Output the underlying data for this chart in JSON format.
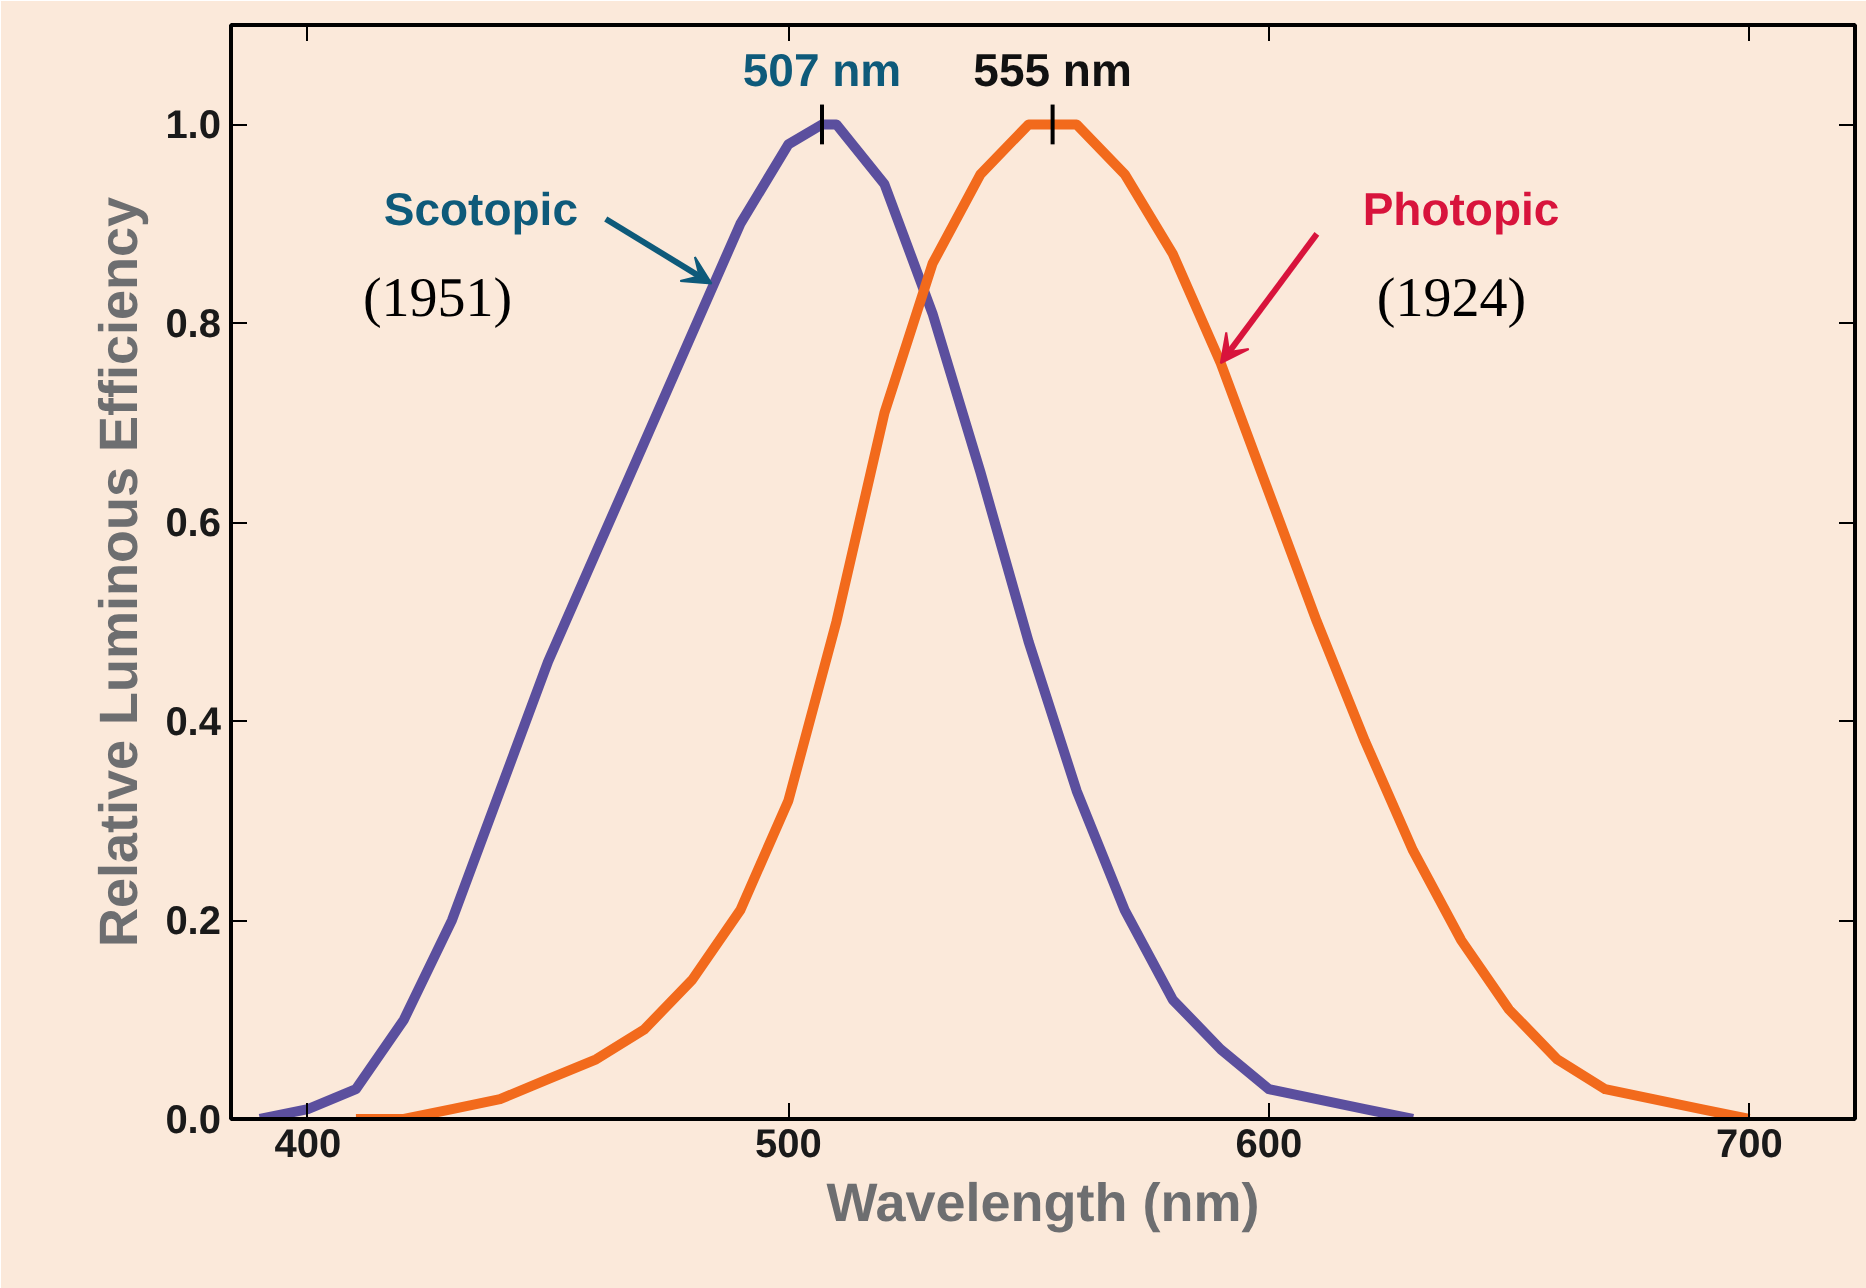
{
  "chart_data": {
    "type": "line",
    "xlabel": "Wavelength (nm)",
    "ylabel": "Relative Luminous Efficiency",
    "xlim": [
      384,
      722
    ],
    "xticks": [
      400,
      500,
      600,
      700
    ],
    "ylim": [
      0,
      1.1
    ],
    "yticks": [
      {
        "value": 0,
        "label": "0.0"
      },
      0.2,
      0.4,
      0.6,
      0.8,
      {
        "value": 1,
        "label": "1.0"
      }
    ],
    "grid": false,
    "legend": false,
    "marker": "none",
    "line_style": "solid",
    "series": [
      {
        "color": "#5b4f9e",
        "x": [
          390,
          400,
          410,
          420,
          430,
          440,
          450,
          460,
          470,
          480,
          490,
          500,
          507,
          510,
          520,
          530,
          540,
          550,
          560,
          570,
          580,
          590,
          600,
          610,
          620,
          630
        ],
        "values": [
          0.0,
          0.01,
          0.03,
          0.1,
          0.2,
          0.33,
          0.46,
          0.57,
          0.68,
          0.79,
          0.9,
          0.98,
          1.0,
          1.0,
          0.94,
          0.81,
          0.65,
          0.48,
          0.33,
          0.21,
          0.12,
          0.07,
          0.03,
          0.02,
          0.01,
          0.0
        ]
      },
      {
        "color": "#f26a1c",
        "x": [
          410,
          420,
          430,
          440,
          450,
          460,
          470,
          480,
          490,
          500,
          510,
          520,
          530,
          540,
          550,
          555,
          560,
          570,
          580,
          590,
          600,
          610,
          620,
          630,
          640,
          650,
          660,
          670,
          680,
          690,
          700
        ],
        "values": [
          0.0,
          0.0,
          0.01,
          0.02,
          0.04,
          0.06,
          0.09,
          0.14,
          0.21,
          0.32,
          0.5,
          0.71,
          0.86,
          0.95,
          1.0,
          1.0,
          1.0,
          0.95,
          0.87,
          0.76,
          0.63,
          0.5,
          0.38,
          0.27,
          0.18,
          0.11,
          0.06,
          0.03,
          0.02,
          0.01,
          0.0
        ]
      }
    ],
    "annotations": [
      {
        "text": "507 nm",
        "x": 507,
        "y": 1.0
      },
      {
        "text": "555 nm",
        "x": 555,
        "y": 1.0
      },
      {
        "text": "Scotopic",
        "x": 484,
        "y": 0.84
      },
      "(1951)",
      {
        "text": "Photopic",
        "x": 590,
        "y": 0.76
      },
      "(1924)"
    ]
  }
}
